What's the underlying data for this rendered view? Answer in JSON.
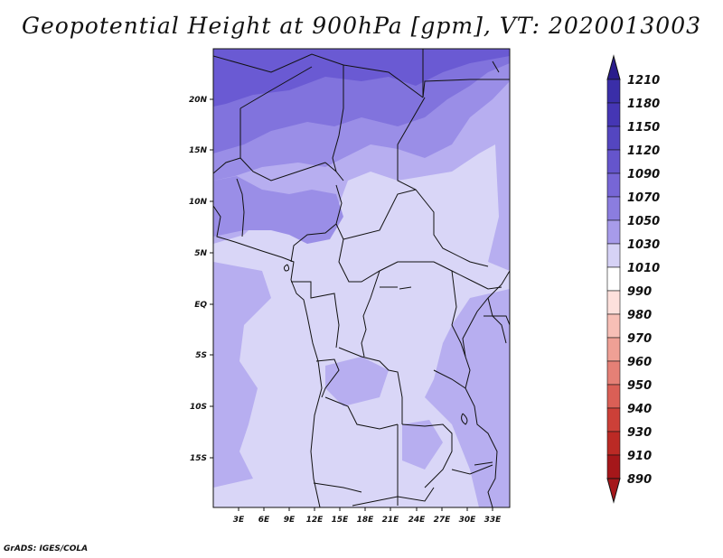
{
  "title": "Geopotential Height at 900hPa [gpm], VT: 2020013003",
  "credit": "GrADS: IGES/COLA",
  "map": {
    "y_axis_labels": [
      "20N",
      "15N",
      "10N",
      "5N",
      "EQ",
      "5S",
      "10S",
      "15S"
    ],
    "x_axis_labels": [
      "3E",
      "6E",
      "9E",
      "12E",
      "15E",
      "18E",
      "21E",
      "24E",
      "27E",
      "30E",
      "33E"
    ],
    "lon_range": [
      0,
      35
    ],
    "lat_range": [
      -20,
      25
    ]
  },
  "colorbar": {
    "labels": [
      "1210",
      "1180",
      "1150",
      "1120",
      "1090",
      "1070",
      "1050",
      "1030",
      "1010",
      "990",
      "980",
      "970",
      "960",
      "950",
      "940",
      "930",
      "910",
      "890"
    ],
    "colors": [
      "#2a1d8c",
      "#3a2ea8",
      "#4536b4",
      "#5446c0",
      "#6555cc",
      "#7766d6",
      "#8b7ddf",
      "#a79bea",
      "#d6d2f6",
      "#ffffff",
      "#fde0dc",
      "#f7bfb6",
      "#efa095",
      "#e58076",
      "#da5f56",
      "#cc4038",
      "#bb2a25",
      "#a5171a"
    ]
  },
  "fill_colors": {
    "c1010": "#d9d6f7",
    "c1030": "#b7aef0",
    "c1050": "#9a8ee7",
    "c1070": "#8173dd",
    "c1090": "#6a5ad3"
  }
}
